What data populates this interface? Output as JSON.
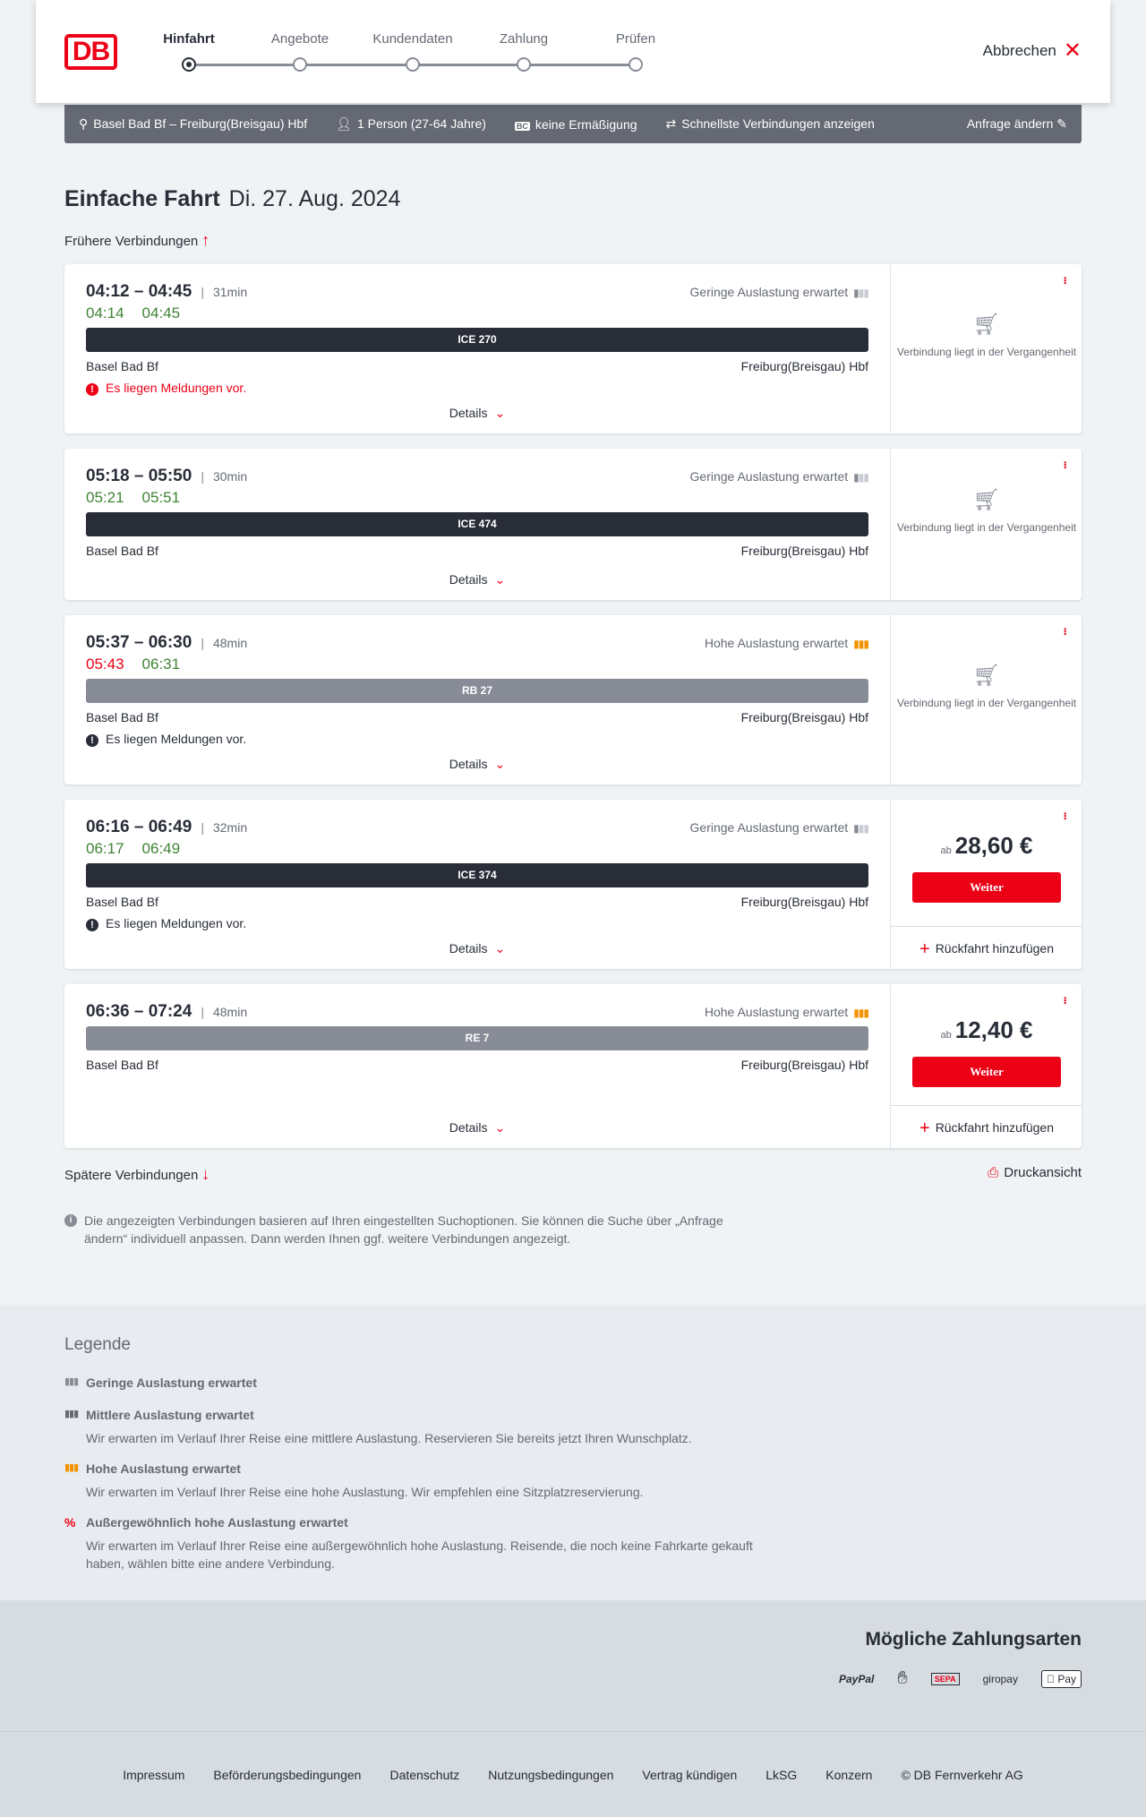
{
  "header": {
    "logo": "DB",
    "steps": [
      {
        "label": "Hinfahrt",
        "active": true
      },
      {
        "label": "Angebote",
        "active": false
      },
      {
        "label": "Kundendaten",
        "active": false
      },
      {
        "label": "Zahlung",
        "active": false
      },
      {
        "label": "Prüfen",
        "active": false
      }
    ],
    "cancel_label": "Abbrechen"
  },
  "search": {
    "route": "Basel Bad Bf – Freiburg(Breisgau) Hbf",
    "travellers": "1 Person (27-64 Jahre)",
    "discount": "keine Ermäßigung",
    "option": "Schnellste Verbindungen anzeigen",
    "edit_label": "Anfrage ändern"
  },
  "page": {
    "title": "Einfache Fahrt",
    "date": "Di. 27. Aug. 2024",
    "earlier": "Frühere Verbindungen",
    "later": "Spätere Verbindungen",
    "print": "Druckansicht",
    "note": "Die angezeigten Verbindungen basieren auf Ihren eingestellten Suchoptionen. Sie können die Suche über „Anfrage ändern“ individuell anpassen. Dann werden Ihnen ggf. weitere Verbindungen angezeigt."
  },
  "labels": {
    "details": "Details",
    "past": "Verbindung liegt in der Vergangenheit",
    "from": "ab",
    "continue": "Weiter",
    "add_return": "Rückfahrt hinzufügen"
  },
  "colors": {
    "accent": "#ec0016",
    "on_time": "#408335",
    "high_occupancy": "#f39200",
    "ice": "#282d37",
    "regional": "#878c96"
  },
  "connections": [
    {
      "times": "04:12 – 04:45",
      "duration": "31min",
      "occupancy": "Geringe Auslastung erwartet",
      "occ_level": "low",
      "rt_dep": "04:14",
      "rt_arr": "04:45",
      "rt_dep_late": false,
      "train": "ICE 270",
      "train_type": "ice",
      "from": "Basel Bad Bf",
      "to": "Freiburg(Breisgau) Hbf",
      "message": "Es liegen Meldungen vor.",
      "message_severity": "error",
      "past": true
    },
    {
      "times": "05:18 – 05:50",
      "duration": "30min",
      "occupancy": "Geringe Auslastung erwartet",
      "occ_level": "low",
      "rt_dep": "05:21",
      "rt_arr": "05:51",
      "rt_dep_late": false,
      "train": "ICE 474",
      "train_type": "ice",
      "from": "Basel Bad Bf",
      "to": "Freiburg(Breisgau) Hbf",
      "message": "",
      "past": true
    },
    {
      "times": "05:37 – 06:30",
      "duration": "48min",
      "occupancy": "Hohe Auslastung erwartet",
      "occ_level": "high",
      "rt_dep": "05:43",
      "rt_arr": "06:31",
      "rt_dep_late": true,
      "train": "RB 27",
      "train_type": "regional",
      "from": "Basel Bad Bf",
      "to": "Freiburg(Breisgau) Hbf",
      "message": "Es liegen Meldungen vor.",
      "message_severity": "info",
      "past": true
    },
    {
      "times": "06:16 – 06:49",
      "duration": "32min",
      "occupancy": "Geringe Auslastung erwartet",
      "occ_level": "low",
      "rt_dep": "06:17",
      "rt_arr": "06:49",
      "rt_dep_late": false,
      "train": "ICE 374",
      "train_type": "ice",
      "from": "Basel Bad Bf",
      "to": "Freiburg(Breisgau) Hbf",
      "message": "Es liegen Meldungen vor.",
      "message_severity": "info",
      "past": false,
      "price": "28,60 €"
    },
    {
      "times": "06:36 – 07:24",
      "duration": "48min",
      "occupancy": "Hohe Auslastung erwartet",
      "occ_level": "high",
      "rt_dep": "",
      "rt_arr": "",
      "train": "RE 7",
      "train_type": "regional",
      "from": "Basel Bad Bf",
      "to": "Freiburg(Breisgau) Hbf",
      "message": "",
      "past": false,
      "price": "12,40 €"
    }
  ],
  "legend": {
    "title": "Legende",
    "items": [
      {
        "title": "Geringe Auslastung erwartet",
        "desc": "",
        "level": "low"
      },
      {
        "title": "Mittlere Auslastung erwartet",
        "desc": "Wir erwarten im Verlauf Ihrer Reise eine mittlere Auslastung. Reservieren Sie bereits jetzt Ihren Wunschplatz.",
        "level": "medium"
      },
      {
        "title": "Hohe Auslastung erwartet",
        "desc": "Wir erwarten im Verlauf Ihrer Reise eine hohe Auslastung. Wir empfehlen eine Sitzplatzreservierung.",
        "level": "high"
      },
      {
        "title": "Außergewöhnlich hohe Auslastung erwartet",
        "desc": "Wir erwarten im Verlauf Ihrer Reise eine außergewöhnlich hohe Auslastung. Reisende, die noch keine Fahrkarte gekauft haben, wählen bitte eine andere Verbindung.",
        "level": "exceptional"
      }
    ]
  },
  "payment": {
    "title": "Mögliche Zahlungsarten",
    "methods": [
      "PayPal",
      "Kreditkarte",
      "SEPA",
      "giropay",
      "Pay"
    ]
  },
  "footer": {
    "links": [
      "Impressum",
      "Beförderungsbedingungen",
      "Datenschutz",
      "Nutzungsbedingungen",
      "Vertrag kündigen",
      "LkSG",
      "Konzern",
      "© DB Fernverkehr AG"
    ]
  }
}
